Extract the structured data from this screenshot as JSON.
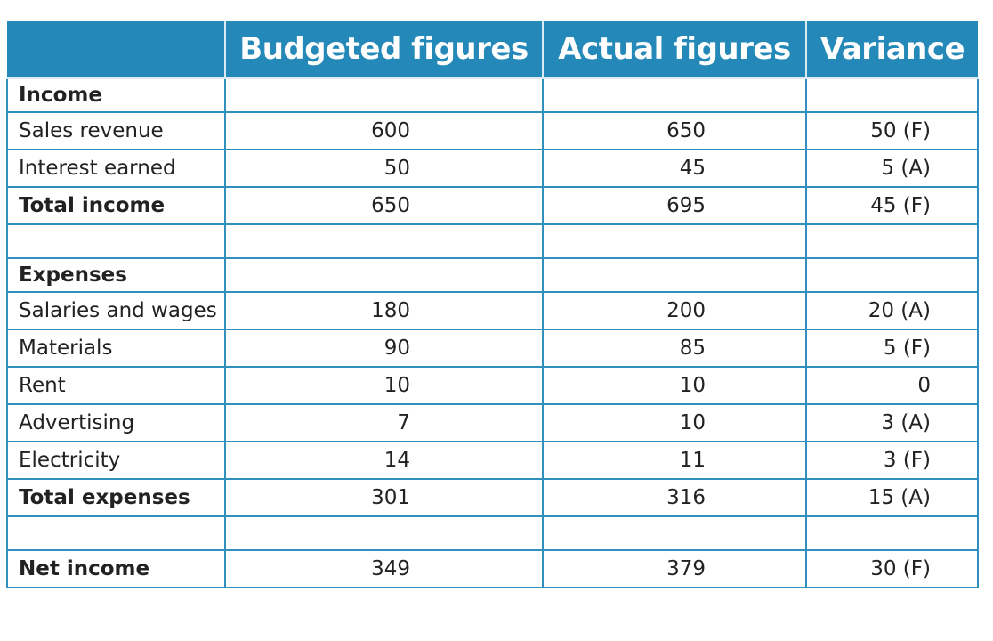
{
  "headers": [
    "",
    "Budgeted figures",
    "Actual figures",
    "Variance"
  ],
  "rows": [
    {
      "label": "Income",
      "budget": "",
      "actual": "",
      "variance": "",
      "bold": true
    },
    {
      "label": "Sales revenue",
      "budget": "600",
      "actual": "650",
      "variance": "50 (F)",
      "bold": false
    },
    {
      "label": "Interest earned",
      "budget": "50",
      "actual": "45",
      "variance": "5 (A)",
      "bold": false
    },
    {
      "label": "Total income",
      "budget": "650",
      "actual": "695",
      "variance": "45 (F)",
      "bold": true
    },
    {
      "label": "",
      "budget": "",
      "actual": "",
      "variance": "",
      "bold": false
    },
    {
      "label": "Expenses",
      "budget": "",
      "actual": "",
      "variance": "",
      "bold": true
    },
    {
      "label": "Salaries and wages",
      "budget": "180",
      "actual": "200",
      "variance": "20 (A)",
      "bold": false
    },
    {
      "label": "Materials",
      "budget": "90",
      "actual": "85",
      "variance": "5 (F)",
      "bold": false
    },
    {
      "label": "Rent",
      "budget": "10",
      "actual": "10",
      "variance": "0",
      "bold": false
    },
    {
      "label": "Advertising",
      "budget": "7",
      "actual": "10",
      "variance": "3 (A)",
      "bold": false
    },
    {
      "label": "Electricity",
      "budget": "14",
      "actual": "11",
      "variance": "3 (F)",
      "bold": false
    },
    {
      "label": "Total expenses",
      "budget": "301",
      "actual": "316",
      "variance": "15 (A)",
      "bold": true
    },
    {
      "label": "",
      "budget": "",
      "actual": "",
      "variance": "",
      "bold": false
    },
    {
      "label": "Net income",
      "budget": "349",
      "actual": "379",
      "variance": "30 (F)",
      "bold": true
    }
  ],
  "colors": {
    "header_bg": "#2489b8",
    "header_text": "#ffffff",
    "border": "#2f8fbe",
    "text": "#222222"
  }
}
